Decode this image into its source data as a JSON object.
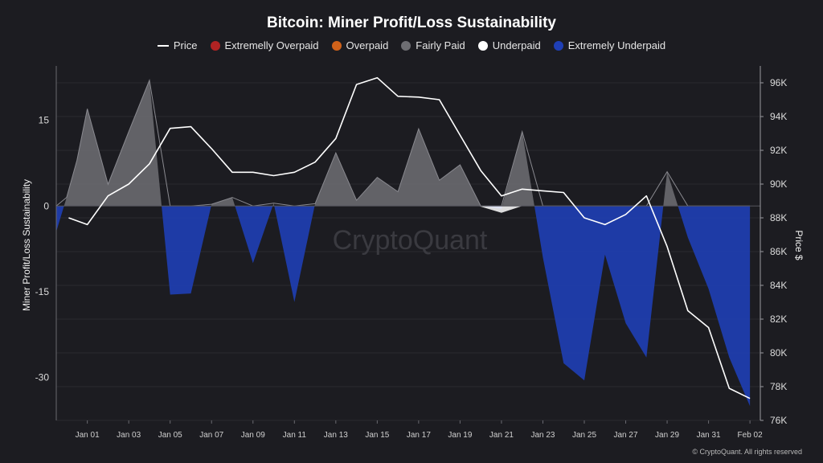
{
  "colors": {
    "background": "#1c1c21",
    "price": "#ffffff",
    "extremely_overpaid": "#b02323",
    "overpaid": "#d0621a",
    "fairly_paid": "#6e6e73",
    "underpaid": "#ffffff",
    "extremely_underpaid": "#1f3fb5"
  },
  "chart_data": {
    "type": "area",
    "title": "Bitcoin: Miner Profit/Loss Sustainability",
    "watermark": "CryptoQuant",
    "copyright": "© CryptoQuant. All rights reserved",
    "legend": [
      {
        "key": "price",
        "label": "Price",
        "marker": "line"
      },
      {
        "key": "extremely_overpaid",
        "label": "Extremelly Overpaid",
        "marker": "dot"
      },
      {
        "key": "overpaid",
        "label": "Overpaid",
        "marker": "dot"
      },
      {
        "key": "fairly_paid",
        "label": "Fairly Paid",
        "marker": "dot"
      },
      {
        "key": "underpaid",
        "label": "Underpaid",
        "marker": "dot"
      },
      {
        "key": "extremely_underpaid",
        "label": "Extremely Underpaid",
        "marker": "dot"
      }
    ],
    "ylabel_left": "Miner Profit/Loss Sustainability",
    "ylabel_right": "Price $",
    "ylim_left": [
      -37.5,
      24.5
    ],
    "ylim_right": [
      76000,
      97000
    ],
    "yticks_left": [
      15,
      0,
      -15,
      -30
    ],
    "yticks_left_labels": [
      "15",
      "0",
      "-15",
      "-30"
    ],
    "yticks_right": [
      96000,
      94000,
      92000,
      90000,
      88000,
      86000,
      84000,
      82000,
      80000,
      78000,
      76000
    ],
    "yticks_right_labels": [
      "96K",
      "94K",
      "92K",
      "90K",
      "88K",
      "86K",
      "84K",
      "82K",
      "80K",
      "78K",
      "76K"
    ],
    "x_range": [
      -0.5,
      33.5
    ],
    "xticks": [
      1,
      3,
      5,
      7,
      9,
      11,
      13,
      15,
      17,
      19,
      21,
      23,
      25,
      27,
      29,
      31,
      33
    ],
    "xtick_labels": [
      "Jan 01",
      "Jan 03",
      "Jan 05",
      "Jan 07",
      "Jan 09",
      "Jan 11",
      "Jan 13",
      "Jan 15",
      "Jan 17",
      "Jan 19",
      "Jan 21",
      "Jan 23",
      "Jan 25",
      "Jan 27",
      "Jan 29",
      "Jan 31",
      "Feb 02"
    ],
    "x_day_index": [
      -0.5,
      0,
      0.5,
      1,
      2,
      3,
      4,
      5,
      6,
      7,
      8,
      9,
      10,
      11,
      12,
      13,
      14,
      15,
      16,
      17,
      18,
      19,
      20,
      21,
      22,
      23,
      24,
      25,
      26,
      27,
      28,
      29,
      30,
      31,
      32,
      33
    ],
    "sustainability": [
      -4.5,
      1.5,
      8,
      17,
      3.8,
      13,
      22,
      -15.5,
      -15.3,
      0.3,
      1.5,
      -10,
      0.5,
      -16.8,
      0.4,
      9.3,
      1,
      5,
      2.5,
      13.5,
      4.5,
      7.2,
      0,
      -0.5,
      13,
      -9,
      -27.5,
      -30.5,
      -8.5,
      -20.5,
      -26.5,
      6,
      -5.5,
      -14.5,
      -26.5,
      -35
    ],
    "price": [
      null,
      88000,
      null,
      87600,
      89300,
      90000,
      91200,
      93300,
      93400,
      92100,
      90700,
      90700,
      90500,
      90700,
      91300,
      92700,
      95900,
      96300,
      95200,
      95150,
      95000,
      92900,
      90800,
      89300,
      89700,
      89600,
      89500,
      88000,
      87600,
      88200,
      89300,
      86300,
      82500,
      81500,
      77900,
      77300
    ],
    "price_start_index": 0.1,
    "classification": {
      "fairly_paid_range": [
        0.1,
        999
      ],
      "underpaid_range": [
        -1,
        0.1
      ],
      "extremely_underpaid_range": [
        -999,
        -1
      ]
    }
  }
}
